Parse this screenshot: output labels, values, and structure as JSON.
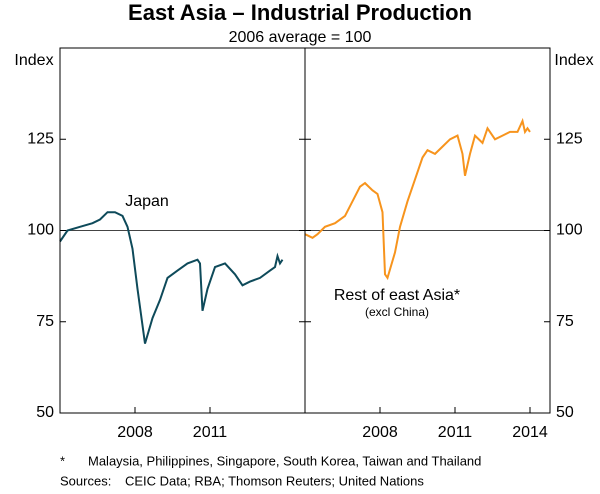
{
  "chart_data": {
    "type": "line",
    "title": "East Asia – Industrial Production",
    "subtitle": "2006 average = 100",
    "ylabel": "Index",
    "ylim": [
      50,
      150
    ],
    "yticks": [
      50,
      75,
      100,
      125
    ],
    "reference_line": 100,
    "panels": [
      {
        "xlim": [
          2005,
          2014.8
        ],
        "xticks": [
          2008,
          2011
        ]
      },
      {
        "xlim": [
          2005,
          2014.8
        ],
        "xticks": [
          2008,
          2011,
          2014
        ]
      }
    ],
    "series": [
      {
        "name": "Japan",
        "color": "#0e4a5a",
        "panel": 0,
        "x": [
          2005.0,
          2005.3,
          2005.8,
          2006.3,
          2006.6,
          2006.9,
          2007.2,
          2007.5,
          2007.7,
          2007.9,
          2008.1,
          2008.4,
          2008.7,
          2009.0,
          2009.3,
          2009.7,
          2010.1,
          2010.5,
          2010.6,
          2010.7,
          2010.9,
          2011.2,
          2011.6,
          2012.0,
          2012.3,
          2012.6,
          2013.0,
          2013.4,
          2013.6,
          2013.7,
          2013.8,
          2013.9
        ],
        "values": [
          97,
          100,
          101,
          102,
          103,
          105,
          105,
          104,
          101,
          95,
          84,
          69,
          76,
          81,
          87,
          89,
          91,
          92,
          91,
          78,
          84,
          90,
          91,
          88,
          85,
          86,
          87,
          89,
          90,
          93,
          91,
          92
        ]
      },
      {
        "name": "Rest of east Asia*",
        "note": "(excl China)",
        "color": "#f7941d",
        "panel": 1,
        "x": [
          2005.0,
          2005.3,
          2005.5,
          2005.8,
          2006.2,
          2006.6,
          2006.9,
          2007.2,
          2007.4,
          2007.7,
          2007.9,
          2008.1,
          2008.2,
          2008.3,
          2008.6,
          2008.8,
          2009.1,
          2009.4,
          2009.7,
          2009.9,
          2010.2,
          2010.5,
          2010.8,
          2011.1,
          2011.3,
          2011.4,
          2011.6,
          2011.8,
          2012.1,
          2012.3,
          2012.6,
          2012.9,
          2013.2,
          2013.5,
          2013.7,
          2013.8,
          2013.9,
          2014.0
        ],
        "values": [
          99,
          98,
          99,
          101,
          102,
          104,
          108,
          112,
          113,
          111,
          110,
          105,
          88,
          87,
          94,
          101,
          108,
          114,
          120,
          122,
          121,
          123,
          125,
          126,
          121,
          115,
          121,
          126,
          124,
          128,
          125,
          126,
          127,
          127,
          130,
          127,
          128,
          127
        ]
      }
    ],
    "footnote": {
      "marker": "*",
      "text": "Malaysia, Philippines, Singapore, South Korea, Taiwan and Thailand"
    },
    "sources": {
      "label": "Sources:",
      "text": "CEIC Data; RBA; Thomson Reuters; United Nations"
    }
  }
}
